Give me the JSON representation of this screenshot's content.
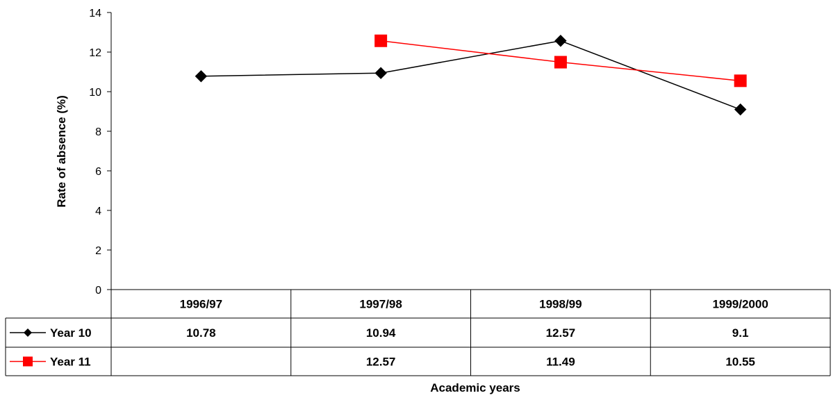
{
  "chart_data": {
    "type": "line",
    "title": "",
    "xlabel": "Academic years",
    "ylabel": "Rate of absence (%)",
    "ylim": [
      0,
      14
    ],
    "yticks": [
      "0",
      "2",
      "4",
      "6",
      "8",
      "10",
      "12",
      "14"
    ],
    "categories": [
      "1996/97",
      "1997/98",
      "1998/99",
      "1999/2000"
    ],
    "grid": false,
    "legend": "data-table-left",
    "series": [
      {
        "name": "Year 10",
        "color": "#000000",
        "marker": "diamond",
        "values": [
          10.78,
          10.94,
          12.57,
          9.1
        ],
        "labels": [
          "10.78",
          "10.94",
          "12.57",
          "9.1"
        ]
      },
      {
        "name": "Year 11",
        "color": "#ff0000",
        "marker": "square",
        "values": [
          null,
          12.57,
          11.49,
          10.55
        ],
        "labels": [
          "",
          "12.57",
          "11.49",
          "10.55"
        ]
      }
    ]
  }
}
